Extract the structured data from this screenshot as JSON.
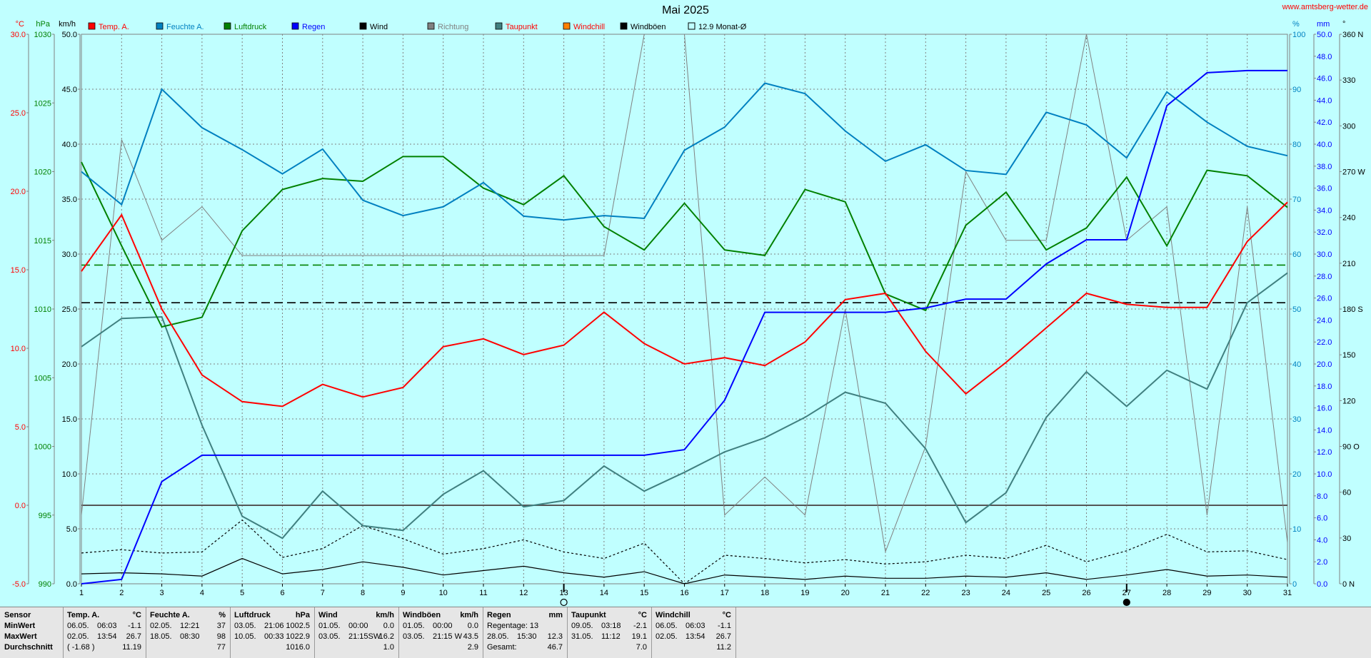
{
  "site_url": "www.amtsberg-wetter.de",
  "title": "Mai 2025",
  "legend": [
    {
      "label": "Temp. A.",
      "color": "#ff0000",
      "text_color": "#ff0000"
    },
    {
      "label": "Feuchte A.",
      "color": "#0080c0",
      "text_color": "#0080c0"
    },
    {
      "label": "Luftdruck",
      "color": "#008000",
      "text_color": "#008000"
    },
    {
      "label": "Regen",
      "color": "#0000ff",
      "text_color": "#0000ff"
    },
    {
      "label": "Wind",
      "color": "#000000",
      "text_color": "#000000"
    },
    {
      "label": "Richtung",
      "color": "#808080",
      "text_color": "#808080"
    },
    {
      "label": "Taupunkt",
      "color": "#408080",
      "text_color": "#ff0000"
    },
    {
      "label": "Windchill",
      "color": "#ff8000",
      "text_color": "#ff0000"
    },
    {
      "label": "Windböen",
      "color": "#000000",
      "text_color": "#000000"
    },
    {
      "label": "12.9 Monat-Ø",
      "color": "none",
      "text_color": "#000000"
    }
  ],
  "axes": {
    "temp": {
      "unit": "°C",
      "ticks": [
        "30.0",
        "25.0",
        "20.0",
        "15.0",
        "10.0",
        "5.0",
        "0.0",
        "-5.0"
      ],
      "color": "#ff0000"
    },
    "pressure": {
      "unit": "hPa",
      "ticks": [
        "1030",
        "1025",
        "1020",
        "1015",
        "1010",
        "1005",
        "1000",
        "995",
        "990"
      ],
      "color": "#008000"
    },
    "wind": {
      "unit": "km/h",
      "ticks": [
        "50.0",
        "45.0",
        "40.0",
        "35.0",
        "30.0",
        "25.0",
        "20.0",
        "15.0",
        "10.0",
        "5.0",
        "0.0"
      ],
      "color": "#000000"
    },
    "humidity": {
      "unit": "%",
      "ticks": [
        "100",
        "90",
        "80",
        "70",
        "60",
        "50",
        "40",
        "30",
        "20",
        "10",
        "0"
      ],
      "color": "#0080c0"
    },
    "rain": {
      "unit": "mm",
      "ticks": [
        "50.0",
        "48.0",
        "46.0",
        "44.0",
        "42.0",
        "40.0",
        "38.0",
        "36.0",
        "34.0",
        "32.0",
        "30.0",
        "28.0",
        "26.0",
        "24.0",
        "22.0",
        "20.0",
        "18.0",
        "16.0",
        "14.0",
        "12.0",
        "10.0",
        "8.0",
        "6.0",
        "4.0",
        "2.0",
        "0.0"
      ],
      "color": "#0000ff"
    },
    "dir": {
      "unit": "°",
      "ticks": [
        "360 N",
        "330",
        "300",
        "270 W",
        "240",
        "210",
        "180 S",
        "150",
        "120",
        "90 O",
        "60",
        "30",
        "0 N"
      ],
      "color": "#000000"
    },
    "days": [
      "1",
      "2",
      "3",
      "4",
      "5",
      "6",
      "7",
      "8",
      "9",
      "10",
      "11",
      "12",
      "13",
      "14",
      "15",
      "16",
      "17",
      "18",
      "19",
      "20",
      "21",
      "22",
      "23",
      "24",
      "25",
      "26",
      "27",
      "28",
      "29",
      "30",
      "31"
    ]
  },
  "chart_data": {
    "type": "line",
    "title": "Mai 2025",
    "x": [
      1,
      2,
      3,
      4,
      5,
      6,
      7,
      8,
      9,
      10,
      11,
      12,
      13,
      14,
      15,
      16,
      17,
      18,
      19,
      20,
      21,
      22,
      23,
      24,
      25,
      26,
      27,
      28,
      29,
      30,
      31
    ],
    "xlim": [
      1,
      31
    ],
    "grid": true,
    "legend_position": "top",
    "series": [
      {
        "name": "Temp. A.",
        "axis": "temp",
        "ylim": [
          -5,
          30
        ],
        "values": [
          14.9,
          18.5,
          12.5,
          8.3,
          6.6,
          6.3,
          7.7,
          6.9,
          7.5,
          10.1,
          10.6,
          9.6,
          10.2,
          12.3,
          10.3,
          9.0,
          9.4,
          8.9,
          10.4,
          13.1,
          13.5,
          9.8,
          7.1,
          9.1,
          11.3,
          13.5,
          12.8,
          12.6,
          12.6,
          16.8,
          19.3
        ]
      },
      {
        "name": "Feuchte A.",
        "axis": "humidity",
        "ylim": [
          0,
          100
        ],
        "values": [
          75,
          69,
          90,
          83,
          79,
          74.6,
          79.1,
          69.8,
          67,
          68.6,
          73,
          66.9,
          66.2,
          67,
          66.5,
          78.9,
          83.1,
          91.1,
          89.2,
          82.4,
          76.9,
          79.9,
          75.2,
          74.5,
          85.8,
          83.5,
          77.5,
          89.5,
          84,
          79.6,
          77.9
        ]
      },
      {
        "name": "Luftdruck",
        "axis": "pressure",
        "ylim": [
          990,
          1030
        ],
        "values": [
          1020.7,
          1014.6,
          1008.7,
          1009.4,
          1015.7,
          1018.7,
          1019.5,
          1019.3,
          1021.1,
          1021.1,
          1018.8,
          1017.6,
          1019.7,
          1016,
          1014.3,
          1017.7,
          1014.3,
          1013.9,
          1018.7,
          1017.8,
          1011.1,
          1009.9,
          1016.1,
          1018.5,
          1014.3,
          1015.9,
          1019.6,
          1014.6,
          1020.1,
          1019.7,
          1017.4
        ]
      },
      {
        "name": "Regen",
        "axis": "rain",
        "ylim": [
          0,
          50
        ],
        "values": [
          0,
          0.4,
          9.3,
          11.7,
          11.7,
          11.7,
          11.7,
          11.7,
          11.7,
          11.7,
          11.7,
          11.7,
          11.7,
          11.7,
          11.7,
          12.2,
          16.7,
          24.7,
          24.7,
          24.7,
          24.7,
          25.1,
          25.9,
          25.9,
          29.1,
          31.3,
          31.3,
          43.5,
          46.5,
          46.7,
          46.7
        ]
      },
      {
        "name": "Taupunkt",
        "axis": "temp",
        "ylim": [
          -5,
          30
        ],
        "values": [
          10.1,
          11.9,
          12.0,
          5.1,
          -0.7,
          -2.1,
          0.9,
          -1.3,
          -1.6,
          0.7,
          2.2,
          -0.1,
          0.3,
          2.5,
          0.9,
          2.1,
          3.4,
          4.3,
          5.6,
          7.2,
          6.5,
          3.6,
          -1.1,
          0.8,
          5.6,
          8.5,
          6.3,
          8.6,
          7.4,
          12.9,
          14.8
        ]
      },
      {
        "name": "Windchill",
        "axis": "temp",
        "ylim": [
          -5,
          30
        ],
        "values": [
          14.9,
          18.5,
          12.5,
          8.3,
          6.6,
          6.3,
          7.7,
          6.9,
          7.5,
          10.1,
          10.6,
          9.6,
          10.2,
          12.3,
          10.3,
          9.0,
          9.4,
          8.9,
          10.4,
          13.1,
          13.5,
          9.8,
          7.1,
          9.1,
          11.3,
          13.5,
          12.8,
          12.6,
          12.6,
          16.8,
          19.3
        ]
      },
      {
        "name": "Wind",
        "axis": "wind",
        "ylim": [
          0,
          50
        ],
        "values": [
          0.9,
          1.0,
          0.9,
          0.7,
          2.3,
          0.9,
          1.3,
          2.0,
          1.5,
          0.8,
          1.2,
          1.6,
          1.0,
          0.6,
          1.1,
          0.0,
          0.8,
          0.6,
          0.4,
          0.7,
          0.5,
          0.5,
          0.7,
          0.6,
          1.0,
          0.4,
          0.8,
          1.3,
          0.7,
          0.8,
          0.6
        ]
      },
      {
        "name": "Windböen",
        "axis": "wind",
        "ylim": [
          0,
          50
        ],
        "values": [
          2.8,
          3.1,
          2.8,
          2.9,
          5.8,
          2.4,
          3.2,
          5.3,
          4.1,
          2.7,
          3.2,
          4.0,
          2.9,
          2.3,
          3.7,
          0.0,
          2.6,
          2.3,
          1.9,
          2.2,
          1.8,
          2.0,
          2.6,
          2.3,
          3.5,
          2.0,
          3.0,
          4.5,
          2.9,
          3.0,
          2.2
        ]
      },
      {
        "name": "Richtung",
        "axis": "dir",
        "ylim": [
          0,
          360
        ],
        "values": [
          45,
          291,
          225,
          247,
          215,
          215,
          215,
          215,
          215,
          215,
          215,
          215,
          215,
          215,
          360,
          360,
          45,
          70,
          45,
          180,
          21,
          90,
          270,
          225,
          225,
          360,
          225,
          247,
          45,
          247,
          27
        ]
      }
    ],
    "reference_lines": [
      {
        "axis": "temp",
        "value": 12.9,
        "style": "dashed",
        "color": "#000000"
      },
      {
        "axis": "pressure",
        "value": 1013.2,
        "style": "dashed",
        "color": "#008000"
      },
      {
        "axis": "temp",
        "value": 0.0,
        "style": "solid",
        "color": "#555555"
      }
    ],
    "markers": [
      {
        "day": 13,
        "symbol": "new-moon"
      },
      {
        "day": 27,
        "symbol": "full-moon"
      }
    ]
  },
  "stats": {
    "sensor": {
      "header": "Sensor",
      "rows": [
        "MinWert",
        "MaxWert",
        "Durchschnitt"
      ]
    },
    "temp": {
      "header": "Temp. A.",
      "unit": "°C",
      "rows": [
        [
          "06.05.",
          "06:03",
          "-1.1"
        ],
        [
          "02.05.",
          "13:54",
          "26.7"
        ],
        [
          "( -1.68 )",
          "",
          "11.19"
        ]
      ]
    },
    "hum": {
      "header": "Feuchte A.",
      "unit": "%",
      "rows": [
        [
          "02.05.",
          "12:21",
          "37"
        ],
        [
          "18.05.",
          "08:30",
          "98"
        ],
        [
          "",
          "",
          "77"
        ]
      ]
    },
    "press": {
      "header": "Luftdruck",
      "unit": "hPa",
      "rows": [
        [
          "03.05.",
          "21:06",
          "1002.5"
        ],
        [
          "10.05.",
          "00:33",
          "1022.9"
        ],
        [
          "",
          "",
          "1016.0"
        ]
      ]
    },
    "wind": {
      "header": "Wind",
      "unit": "km/h",
      "rows": [
        [
          "01.05.",
          "00:00",
          "0.0"
        ],
        [
          "03.05.",
          "21:15SW",
          "16.2"
        ],
        [
          "",
          "",
          "1.0"
        ]
      ]
    },
    "gust": {
      "header": "Windböen",
      "unit": "km/h",
      "rows": [
        [
          "01.05.",
          "00:00",
          "0.0"
        ],
        [
          "03.05.",
          "21:15 W",
          "43.5"
        ],
        [
          "",
          "",
          "2.9"
        ]
      ]
    },
    "rain": {
      "header": "Regen",
      "unit": "mm",
      "rows": [
        [
          "Regentage: 13",
          "",
          ""
        ],
        [
          "28.05.",
          "15:30",
          "12.3"
        ],
        [
          "Gesamt:",
          "",
          "46.7"
        ]
      ]
    },
    "dew": {
      "header": "Taupunkt",
      "unit": "°C",
      "rows": [
        [
          "09.05.",
          "03:18",
          "-2.1"
        ],
        [
          "31.05.",
          "11:12",
          "19.1"
        ],
        [
          "",
          "",
          "7.0"
        ]
      ]
    },
    "chill": {
      "header": "Windchill",
      "unit": "°C",
      "rows": [
        [
          "06.05.",
          "06:03",
          "-1.1"
        ],
        [
          "02.05.",
          "13:54",
          "26.7"
        ],
        [
          "",
          "",
          "11.2"
        ]
      ]
    }
  }
}
